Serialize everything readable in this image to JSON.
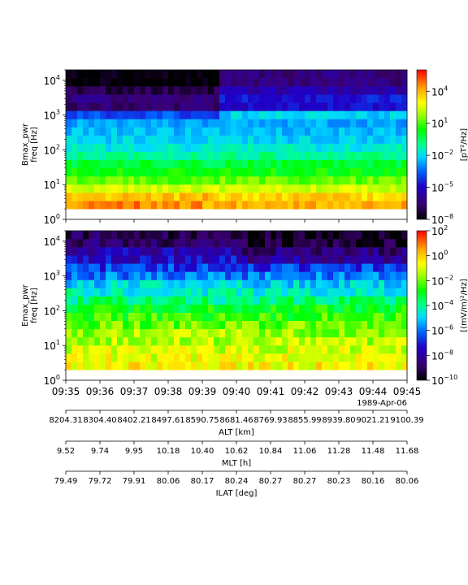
{
  "chart_data": [
    {
      "type": "heatmap",
      "ylabel_line1": "Bmax_pwr",
      "ylabel_line2": "freq [Hz]",
      "yscale": "log",
      "ylim": [
        1,
        20000
      ],
      "y_ticks": [
        {
          "value": 1,
          "base": "10",
          "exp": "0"
        },
        {
          "value": 10,
          "base": "10",
          "exp": "1"
        },
        {
          "value": 100,
          "base": "10",
          "exp": "2"
        },
        {
          "value": 1000,
          "base": "10",
          "exp": "3"
        },
        {
          "value": 10000,
          "base": "10",
          "exp": "4"
        }
      ],
      "colorbar": {
        "label": "[pT²/Hz]",
        "scale": "log",
        "range": [
          1e-08,
          1000000.0
        ],
        "ticks": [
          {
            "value": 10000.0,
            "base": "10",
            "exp": "4"
          },
          {
            "value": 10,
            "base": "10",
            "exp": "1"
          },
          {
            "value": 0.01,
            "base": "10",
            "exp": "−2"
          },
          {
            "value": 1e-05,
            "base": "10",
            "exp": "−5"
          },
          {
            "value": 1e-08,
            "base": "10",
            "exp": "−8"
          }
        ]
      }
    },
    {
      "type": "heatmap",
      "ylabel_line1": "Emax_pwr",
      "ylabel_line2": "freq [Hz]",
      "yscale": "log",
      "ylim": [
        1,
        20000
      ],
      "y_ticks": [
        {
          "value": 1,
          "base": "10",
          "exp": "0"
        },
        {
          "value": 10,
          "base": "10",
          "exp": "1"
        },
        {
          "value": 100,
          "base": "10",
          "exp": "2"
        },
        {
          "value": 1000,
          "base": "10",
          "exp": "3"
        },
        {
          "value": 10000,
          "base": "10",
          "exp": "4"
        }
      ],
      "colorbar": {
        "label": "[(mV/m)²/Hz]",
        "scale": "log",
        "range": [
          1e-10,
          100
        ],
        "ticks": [
          {
            "value": 100,
            "base": "10",
            "exp": "2"
          },
          {
            "value": 1,
            "base": "10",
            "exp": "0"
          },
          {
            "value": 0.01,
            "base": "10",
            "exp": "−2"
          },
          {
            "value": 0.0001,
            "base": "10",
            "exp": "−4"
          },
          {
            "value": 1e-06,
            "base": "10",
            "exp": "−6"
          },
          {
            "value": 1e-08,
            "base": "10",
            "exp": "−8"
          },
          {
            "value": 1e-10,
            "base": "10",
            "exp": "−10"
          }
        ]
      }
    }
  ],
  "time_axis": {
    "range": [
      "09:35",
      "09:45"
    ],
    "ticks": [
      "09:35",
      "09:36",
      "09:37",
      "09:38",
      "09:39",
      "09:40",
      "09:41",
      "09:42",
      "09:43",
      "09:44",
      "09:45"
    ],
    "date_label": "1989-Apr-06"
  },
  "aux_axes": [
    {
      "label": "ALT [km]",
      "ticks": [
        "8204.31",
        "8304.40",
        "8402.21",
        "8497.61",
        "8590.75",
        "8681.46",
        "8769.93",
        "8855.99",
        "8939.80",
        "9021.21",
        "9100.39"
      ]
    },
    {
      "label": "MLT [h]",
      "ticks": [
        "9.52",
        "9.74",
        "9.95",
        "10.18",
        "10.40",
        "10.62",
        "10.84",
        "11.06",
        "11.28",
        "11.48",
        "11.68"
      ]
    },
    {
      "label": "ILAT [deg]",
      "ticks": [
        "79.49",
        "79.72",
        "79.91",
        "80.06",
        "80.17",
        "80.24",
        "80.27",
        "80.27",
        "80.23",
        "80.16",
        "80.06"
      ]
    }
  ]
}
